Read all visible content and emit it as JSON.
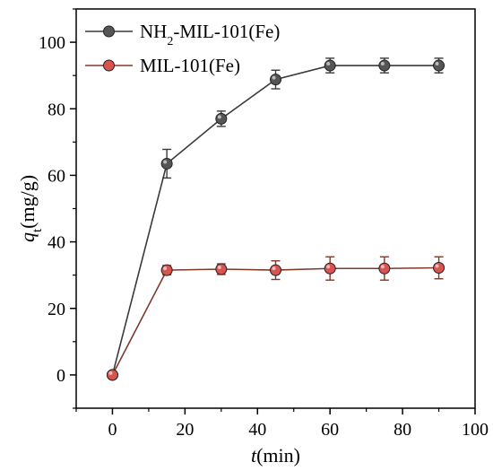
{
  "chart_data": {
    "type": "line",
    "xlabel_var": "t",
    "xlabel_unit": "(min)",
    "ylabel_var": "q",
    "ylabel_sub": "t",
    "ylabel_unit": "(mg/g)",
    "xlim": [
      -10,
      100
    ],
    "ylim": [
      -10,
      110
    ],
    "xticks": [
      0,
      20,
      40,
      60,
      80,
      100
    ],
    "yticks": [
      0,
      20,
      40,
      60,
      80,
      100
    ],
    "grid": false,
    "legend_position": "top-left",
    "series": [
      {
        "name_main": "NH",
        "name_sub": "2",
        "name_rest": "-MIL-101(Fe)",
        "color": "#3a3a3a",
        "marker_color": "#555555",
        "x": [
          0,
          15,
          30,
          45,
          60,
          75,
          90
        ],
        "y": [
          0,
          63.5,
          77,
          88.8,
          93,
          93,
          93
        ],
        "err": [
          0,
          4.3,
          2.3,
          2.8,
          2.2,
          2.2,
          2.2
        ]
      },
      {
        "name_main": "MIL-101(Fe)",
        "name_sub": "",
        "name_rest": "",
        "color": "#7b3b2b",
        "marker_color": "#d9534f",
        "x": [
          0,
          15,
          30,
          45,
          60,
          75,
          90
        ],
        "y": [
          0,
          31.5,
          31.8,
          31.5,
          32,
          32,
          32.2
        ],
        "err": [
          0,
          1.4,
          1.6,
          2.8,
          3.5,
          3.5,
          3.3
        ]
      }
    ]
  }
}
